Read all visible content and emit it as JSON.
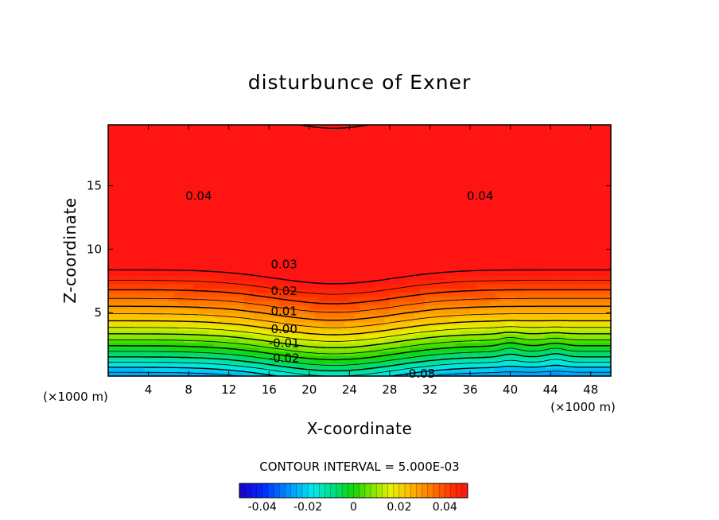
{
  "chart_data": {
    "type": "heatmap",
    "title": "disturbunce of Exner",
    "xlabel": "X-coordinate",
    "ylabel": "Z-coordinate",
    "x_unit_label": "(×1000 m)",
    "y_unit_label": "(×1000 m)",
    "xlim": [
      0,
      50
    ],
    "ylim": [
      0,
      19.8
    ],
    "x_ticks": [
      "4",
      "8",
      "12",
      "16",
      "20",
      "24",
      "28",
      "32",
      "36",
      "40",
      "44",
      "48"
    ],
    "y_ticks": [
      "5",
      "10",
      "15"
    ],
    "contour_interval_label": "CONTOUR INTERVAL = 5.000E-03",
    "colorbar": {
      "range": [
        -0.05,
        0.05
      ],
      "ticks": [
        "-0.04",
        "-0.02",
        "0",
        "0.02",
        "0.04"
      ]
    },
    "contour_labels": [
      {
        "text": "0.04",
        "x": 9,
        "z": 14.2
      },
      {
        "text": "0.04",
        "x": 37,
        "z": 14.2
      },
      {
        "text": "0.03",
        "x": 17.5,
        "z": 8.8
      },
      {
        "text": "0.02",
        "x": 17.5,
        "z": 6.7
      },
      {
        "text": "0.01",
        "x": 17.5,
        "z": 5.1
      },
      {
        "text": "0.00",
        "x": 17.5,
        "z": 3.7
      },
      {
        "text": "-0.01",
        "x": 17.5,
        "z": 2.6
      },
      {
        "text": "-0.02",
        "x": 17.5,
        "z": 1.4
      },
      {
        "text": "-0.03",
        "x": 31,
        "z": 0.2
      }
    ]
  }
}
